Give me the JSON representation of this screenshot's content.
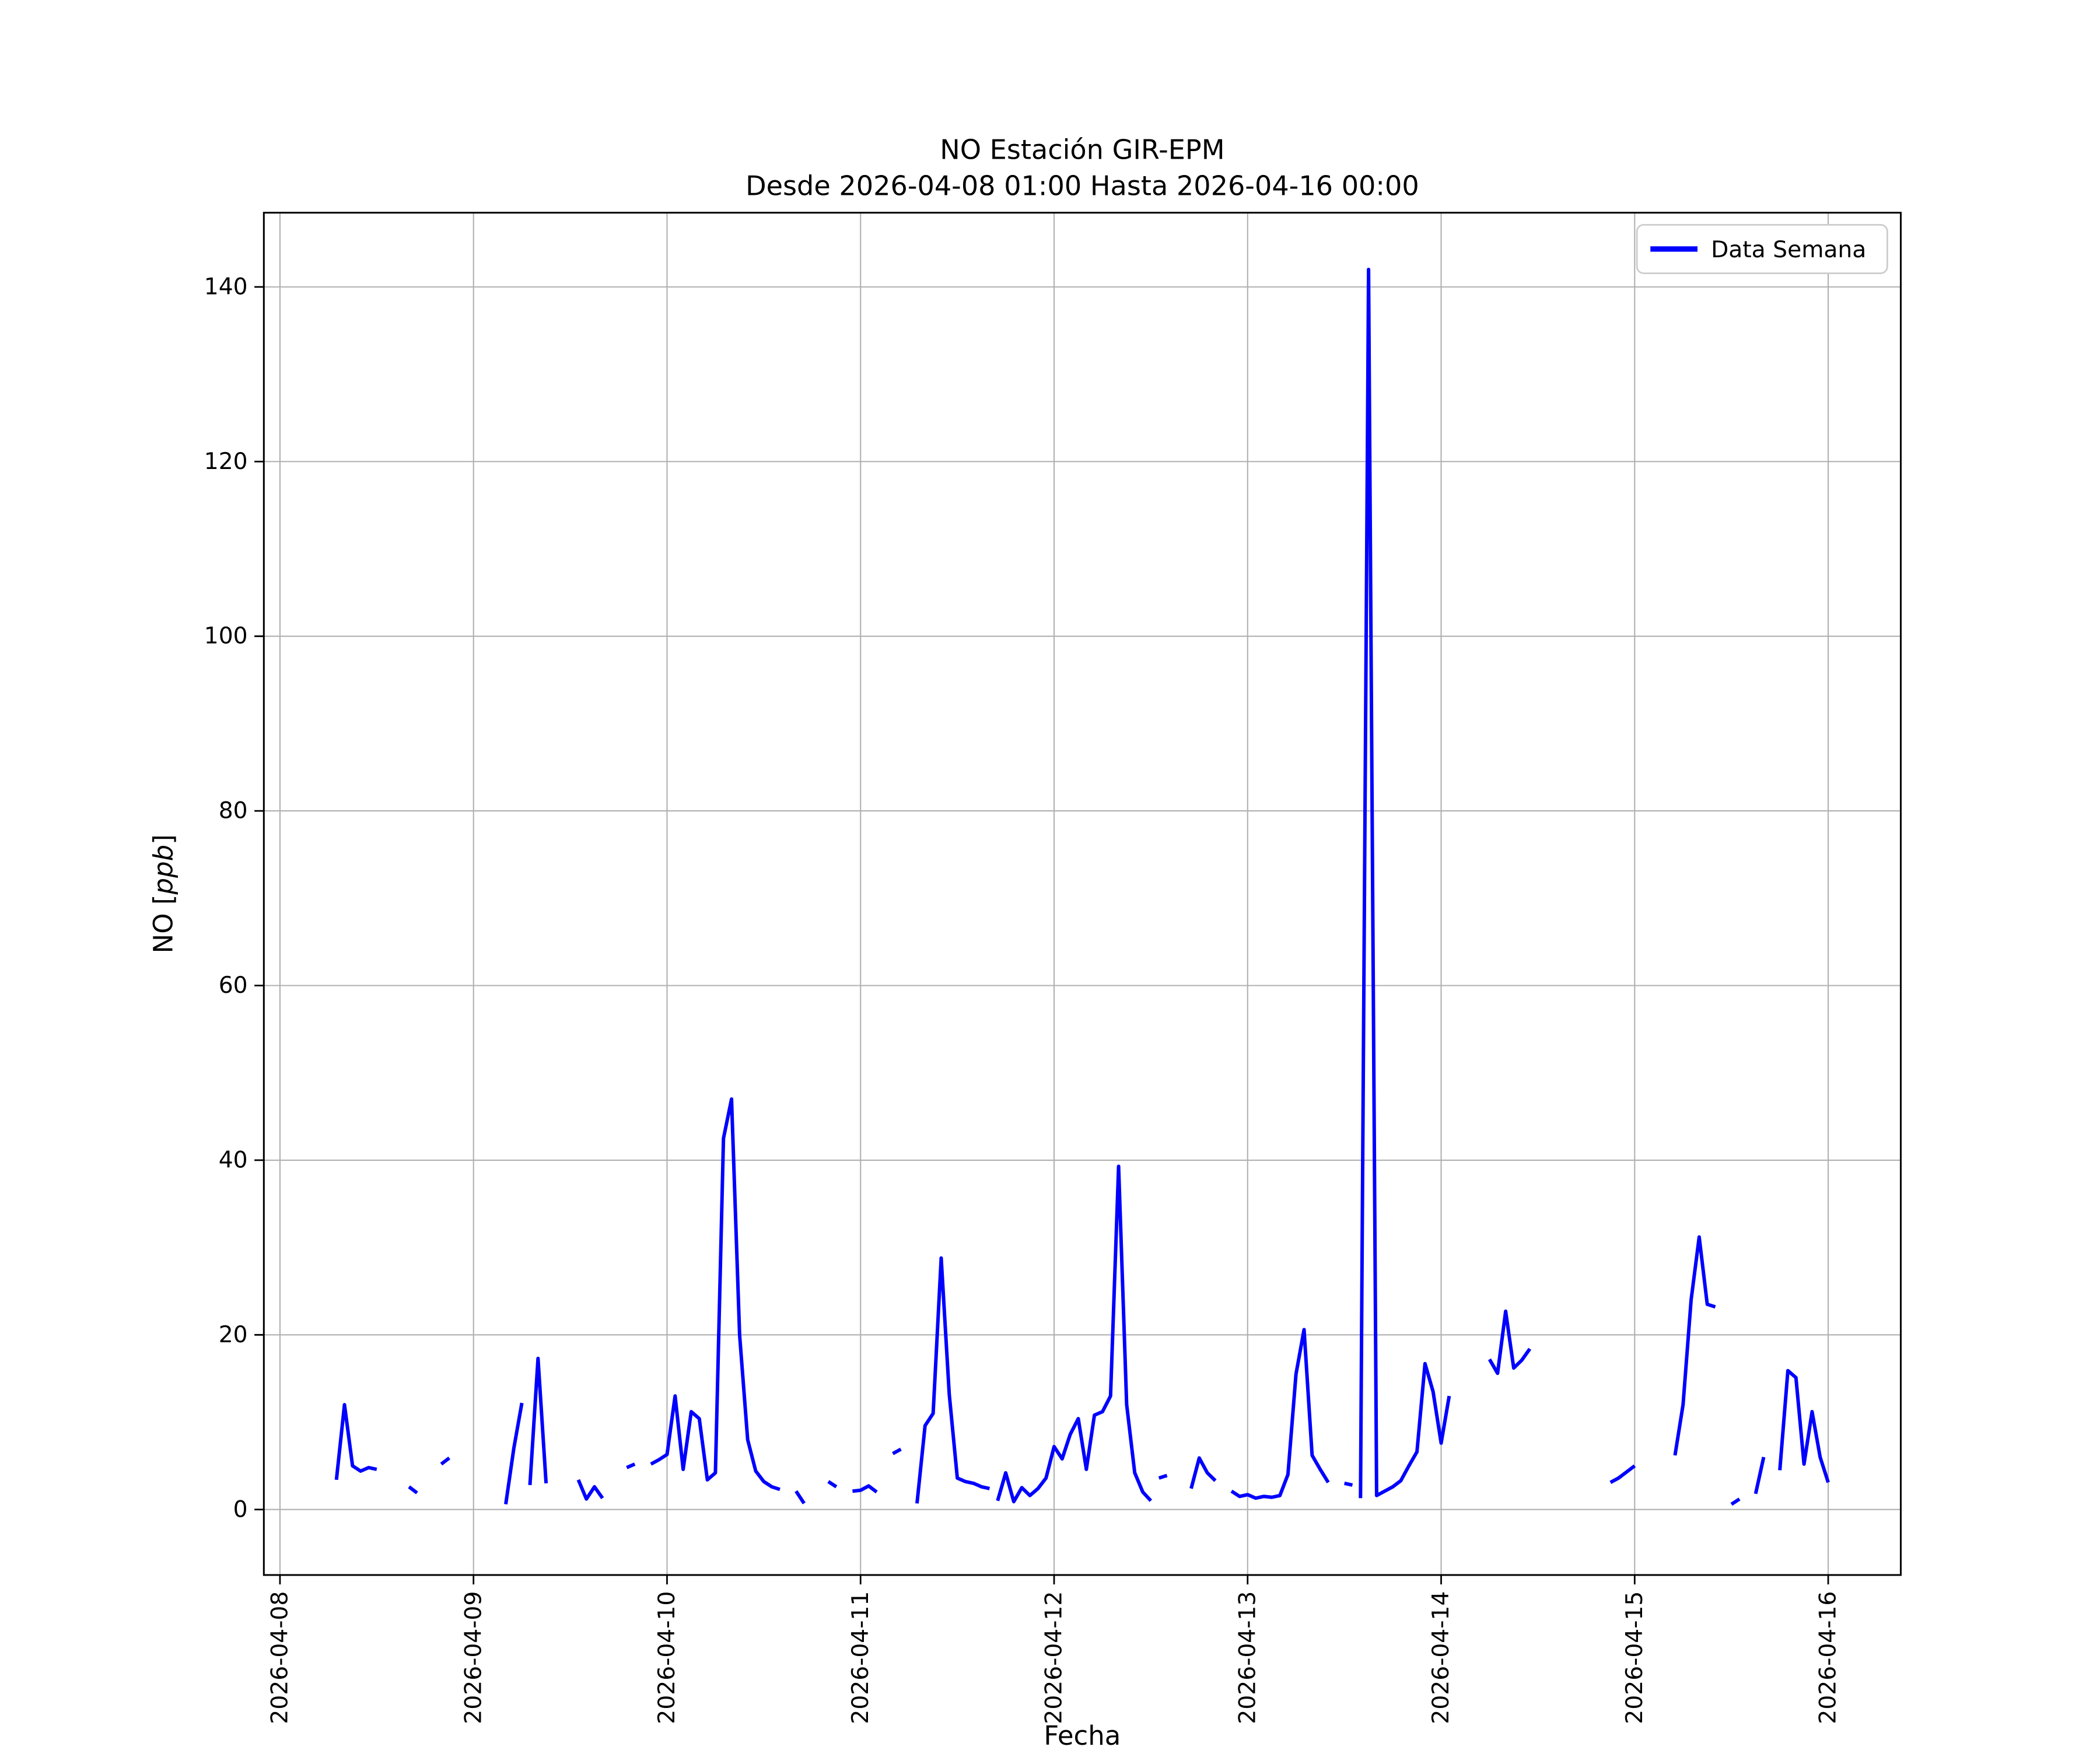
{
  "chart_data": {
    "type": "line",
    "title": "NO Estación GIR-EPM",
    "subtitle": "Desde 2026-04-08 01:00 Hasta 2026-04-16 00:00",
    "xlabel": "Fecha",
    "ylabel": {
      "prefix": "NO [",
      "italic": "ppb",
      "suffix": "]"
    },
    "legend": {
      "label": "Data Semana",
      "position": "upper-right"
    },
    "line": {
      "color": "#0000ff",
      "width": 2.6
    },
    "grid": {
      "show": true,
      "color": "#b0b0b0"
    },
    "x_axis": {
      "unit": "hours since 2026-04-08 00:00",
      "lim": [
        -2,
        201
      ],
      "ticks": [
        {
          "t": 0,
          "label": "2026-04-08"
        },
        {
          "t": 24,
          "label": "2026-04-09"
        },
        {
          "t": 48,
          "label": "2026-04-10"
        },
        {
          "t": 72,
          "label": "2026-04-11"
        },
        {
          "t": 96,
          "label": "2026-04-12"
        },
        {
          "t": 120,
          "label": "2026-04-13"
        },
        {
          "t": 144,
          "label": "2026-04-14"
        },
        {
          "t": 168,
          "label": "2026-04-15"
        },
        {
          "t": 192,
          "label": "2026-04-16"
        }
      ]
    },
    "y_axis": {
      "lim": [
        -7.5,
        148.5
      ],
      "ticks": [
        0,
        20,
        40,
        60,
        80,
        100,
        120,
        140
      ]
    },
    "series": [
      {
        "name": "Data Semana",
        "segments": [
          [
            [
              7,
              3.4
            ],
            [
              8,
              12.0
            ],
            [
              9,
              5.0
            ],
            [
              10,
              4.4
            ],
            [
              11,
              4.8
            ],
            [
              12,
              4.6
            ]
          ],
          [
            [
              16,
              2.6
            ],
            [
              17,
              1.9
            ]
          ],
          [
            [
              20,
              5.2
            ],
            [
              21,
              5.9
            ]
          ],
          [
            [
              28,
              0.6
            ],
            [
              29,
              7.0
            ],
            [
              30,
              12.2
            ]
          ],
          [
            [
              31,
              2.8
            ],
            [
              32,
              17.3
            ],
            [
              33,
              3.0
            ]
          ],
          [
            [
              37,
              3.4
            ],
            [
              38,
              1.2
            ],
            [
              39,
              2.6
            ],
            [
              40,
              1.3
            ]
          ],
          [
            [
              43,
              4.8
            ],
            [
              44,
              5.2
            ]
          ],
          [
            [
              46,
              5.2
            ],
            [
              47,
              5.7
            ],
            [
              48,
              6.3
            ],
            [
              49,
              13.0
            ],
            [
              50,
              4.6
            ],
            [
              51,
              11.2
            ],
            [
              52,
              10.4
            ],
            [
              53,
              3.4
            ],
            [
              54,
              4.2
            ],
            [
              55,
              42.5
            ],
            [
              56,
              47.0
            ],
            [
              57,
              20.0
            ],
            [
              58,
              8.0
            ],
            [
              59,
              4.4
            ],
            [
              60,
              3.2
            ],
            [
              61,
              2.6
            ],
            [
              62,
              2.3
            ]
          ],
          [
            [
              64,
              2.1
            ],
            [
              65,
              0.7
            ]
          ],
          [
            [
              68,
              3.2
            ],
            [
              69,
              2.6
            ]
          ],
          [
            [
              71,
              2.1
            ],
            [
              72,
              2.2
            ],
            [
              73,
              2.7
            ],
            [
              74,
              2.0
            ]
          ],
          [
            [
              76,
              6.4
            ],
            [
              77,
              6.9
            ]
          ],
          [
            [
              79,
              0.7
            ],
            [
              80,
              9.6
            ],
            [
              81,
              11.0
            ],
            [
              82,
              28.8
            ],
            [
              83,
              13.2
            ],
            [
              84,
              3.6
            ],
            [
              85,
              3.2
            ],
            [
              86,
              3.0
            ],
            [
              87,
              2.6
            ],
            [
              88,
              2.4
            ]
          ],
          [
            [
              89,
              1.0
            ],
            [
              90,
              4.2
            ],
            [
              91,
              0.9
            ],
            [
              92,
              2.5
            ],
            [
              93,
              1.6
            ],
            [
              94,
              2.4
            ],
            [
              95,
              3.6
            ],
            [
              96,
              7.2
            ],
            [
              97,
              5.8
            ],
            [
              98,
              8.6
            ],
            [
              99,
              10.4
            ],
            [
              100,
              4.6
            ],
            [
              101,
              10.8
            ],
            [
              102,
              11.2
            ],
            [
              103,
              13.0
            ],
            [
              104,
              39.3
            ],
            [
              105,
              12.0
            ],
            [
              106,
              4.2
            ],
            [
              107,
              2.0
            ],
            [
              108,
              1.0
            ]
          ],
          [
            [
              109,
              3.6
            ],
            [
              110,
              3.9
            ]
          ],
          [
            [
              113,
              2.4
            ],
            [
              114,
              5.9
            ],
            [
              115,
              4.2
            ],
            [
              116,
              3.3
            ]
          ],
          [
            [
              118,
              2.1
            ],
            [
              119,
              1.5
            ],
            [
              120,
              1.7
            ],
            [
              121,
              1.3
            ],
            [
              122,
              1.5
            ],
            [
              123,
              1.4
            ],
            [
              124,
              1.6
            ],
            [
              125,
              4.0
            ],
            [
              126,
              15.5
            ],
            [
              127,
              20.6
            ],
            [
              128,
              6.2
            ],
            [
              129,
              4.6
            ],
            [
              130,
              3.1
            ]
          ],
          [
            [
              132,
              3.0
            ],
            [
              133,
              2.8
            ]
          ],
          [
            [
              134,
              1.3
            ],
            [
              135,
              142.0
            ],
            [
              136,
              1.6
            ],
            [
              137,
              2.1
            ],
            [
              138,
              2.6
            ],
            [
              139,
              3.3
            ],
            [
              140,
              5.0
            ],
            [
              141,
              6.6
            ],
            [
              142,
              16.7
            ],
            [
              143,
              13.5
            ],
            [
              144,
              7.6
            ],
            [
              145,
              13.0
            ]
          ],
          [
            [
              150,
              17.2
            ],
            [
              151,
              15.6
            ],
            [
              152,
              22.7
            ],
            [
              153,
              16.2
            ],
            [
              154,
              17.1
            ],
            [
              155,
              18.4
            ]
          ],
          [
            [
              165,
              3.1
            ],
            [
              166,
              3.6
            ],
            [
              167,
              4.3
            ],
            [
              168,
              5.0
            ]
          ],
          [
            [
              173,
              6.2
            ],
            [
              174,
              12.0
            ],
            [
              175,
              24.0
            ],
            [
              176,
              31.2
            ],
            [
              177,
              23.5
            ],
            [
              178,
              23.2
            ]
          ],
          [
            [
              180,
              0.6
            ],
            [
              181,
              1.2
            ]
          ],
          [
            [
              183,
              1.8
            ],
            [
              184,
              6.0
            ]
          ],
          [
            [
              186,
              4.5
            ],
            [
              187,
              15.9
            ],
            [
              188,
              15.1
            ],
            [
              189,
              5.2
            ],
            [
              190,
              11.2
            ],
            [
              191,
              6.0
            ],
            [
              192,
              3.1
            ]
          ]
        ]
      }
    ]
  }
}
